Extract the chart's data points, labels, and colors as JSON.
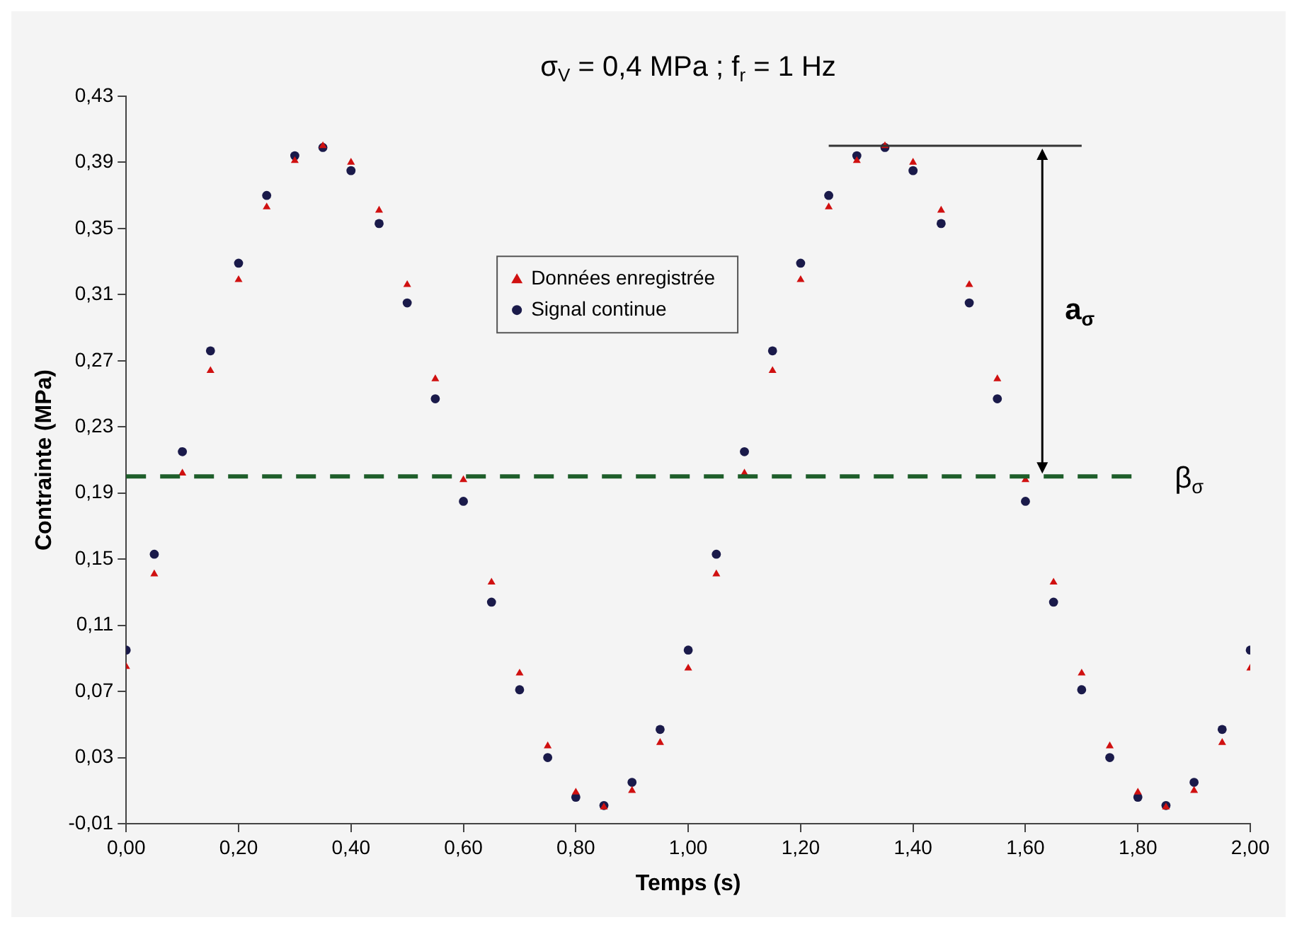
{
  "chart_data": {
    "type": "scatter",
    "title": "σ$_{V}$ = 0,4 MPa ; f$_{r}$ = 1 Hz",
    "xlabel": "Temps (s)",
    "ylabel": "Contrainte (MPa)",
    "x": [
      0,
      0.05,
      0.1,
      0.15,
      0.2,
      0.25,
      0.3,
      0.35,
      0.4,
      0.45,
      0.5,
      0.55,
      0.6,
      0.65,
      0.7,
      0.75,
      0.8,
      0.85,
      0.9,
      0.95,
      1,
      1.05,
      1.1,
      1.15,
      1.2,
      1.25,
      1.3,
      1.35,
      1.4,
      1.45,
      1.5,
      1.55,
      1.6,
      1.65,
      1.7,
      1.75,
      1.8,
      1.85,
      1.9,
      1.95,
      2
    ],
    "series": [
      {
        "name": "Données enregistrée",
        "color": "#d01010",
        "marker": "triangle",
        "values": [
          0.085,
          0.141,
          0.202,
          0.264,
          0.319,
          0.363,
          0.391,
          0.4,
          0.39,
          0.361,
          0.316,
          0.259,
          0.198,
          0.136,
          0.081,
          0.037,
          0.009,
          0,
          0.01,
          0.039,
          0.084,
          0.141,
          0.202,
          0.264,
          0.319,
          0.363,
          0.391,
          0.4,
          0.39,
          0.361,
          0.316,
          0.259,
          0.198,
          0.136,
          0.081,
          0.037,
          0.009,
          0,
          0.01,
          0.039,
          0.084
        ]
      },
      {
        "name": "Signal continue",
        "color": "#1a1a4a",
        "marker": "circle",
        "values": [
          0.095,
          0.153,
          0.215,
          0.276,
          0.329,
          0.37,
          0.394,
          0.399,
          0.385,
          0.353,
          0.305,
          0.247,
          0.185,
          0.124,
          0.071,
          0.03,
          0.006,
          0.001,
          0.015,
          0.047,
          0.095,
          0.153,
          0.215,
          0.276,
          0.329,
          0.37,
          0.394,
          0.399,
          0.385,
          0.353,
          0.305,
          0.247,
          0.185,
          0.124,
          0.071,
          0.03,
          0.006,
          0.001,
          0.015,
          0.047,
          0.095
        ]
      }
    ],
    "xlim": [
      0,
      2
    ],
    "xticks": [
      {
        "value": 0,
        "label": "0,00"
      },
      {
        "value": 0.2,
        "label": "0,20"
      },
      {
        "value": 0.4,
        "label": "0,40"
      },
      {
        "value": 0.6,
        "label": "0,60"
      },
      {
        "value": 0.8,
        "label": "0,80"
      },
      {
        "value": 1,
        "label": "1,00"
      },
      {
        "value": 1.2,
        "label": "1,20"
      },
      {
        "value": 1.4,
        "label": "1,40"
      },
      {
        "value": 1.6,
        "label": "1,60"
      },
      {
        "value": 1.8,
        "label": "1,80"
      },
      {
        "value": 2,
        "label": "2,00"
      }
    ],
    "ylim": [
      -0.01,
      0.43
    ],
    "yticks": [
      {
        "value": -0.01,
        "label": "-0,01"
      },
      {
        "value": 0.03,
        "label": "0,03"
      },
      {
        "value": 0.07,
        "label": "0,07"
      },
      {
        "value": 0.11,
        "label": "0,11"
      },
      {
        "value": 0.15,
        "label": "0,15"
      },
      {
        "value": 0.19,
        "label": "0,19"
      },
      {
        "value": 0.23,
        "label": "0,23"
      },
      {
        "value": 0.27,
        "label": "0,27"
      },
      {
        "value": 0.31,
        "label": "0,31"
      },
      {
        "value": 0.35,
        "label": "0,35"
      },
      {
        "value": 0.39,
        "label": "0,39"
      },
      {
        "value": 0.43,
        "label": "0,43"
      }
    ],
    "ref_lines": [
      {
        "axis": "y",
        "value": 0.2,
        "label": "β$_{σ}$",
        "color": "#1e5e2a",
        "line_style": "dashed"
      }
    ],
    "annotations": [
      "a$_{σ}$"
    ],
    "grid": false,
    "legend": "top center"
  }
}
